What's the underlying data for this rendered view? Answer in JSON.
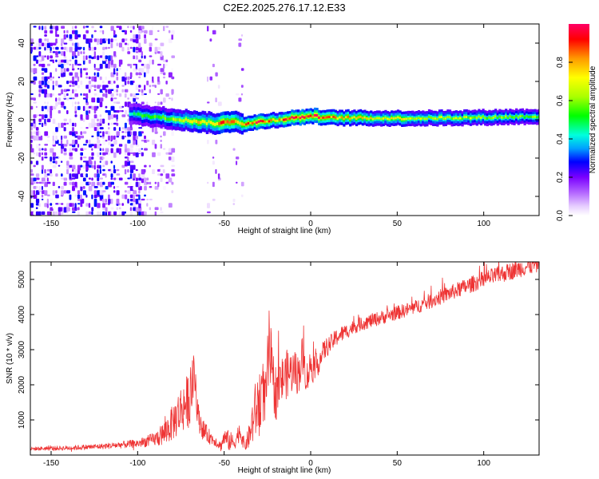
{
  "title": "C2E2.2025.276.17.12.E33",
  "colors": {
    "snr_line": "#ee3333",
    "axis": "#000000",
    "colormap": [
      "#ffffff",
      "#e6ccff",
      "#b366ff",
      "#7a00ff",
      "#0000ff",
      "#00a0ff",
      "#00ffdd",
      "#00ff00",
      "#aaff00",
      "#ffff00",
      "#ff9900",
      "#ff0000",
      "#ff0066"
    ]
  },
  "chart_data": [
    {
      "type": "heatmap",
      "title": "C2E2.2025.276.17.12.E33",
      "xlabel": "Height of straight line (km)",
      "ylabel": "Frequency (Hz)",
      "xlim": [
        -162,
        132
      ],
      "ylim": [
        -50,
        50
      ],
      "xticks": [
        "-150",
        "-100",
        "-50",
        "0",
        "50",
        "100"
      ],
      "yticks": [
        "40",
        "20",
        "0",
        "-20",
        "-40"
      ],
      "colorbar": {
        "label": "Normalized spectral amplitude",
        "range": [
          0,
          1
        ],
        "ticks": [
          "0.0",
          "0.2",
          "0.4",
          "0.6",
          "0.8"
        ]
      },
      "ridge": {
        "x": [
          -105,
          -95,
          -85,
          -75,
          -65,
          -55,
          -50,
          -45,
          -40,
          -35,
          -30,
          -25,
          -20,
          -15,
          -10,
          -5,
          0,
          5,
          10,
          20,
          40,
          60,
          80,
          100,
          120,
          132
        ],
        "center_hz": [
          3,
          2,
          1,
          0,
          -1,
          -2,
          -1.5,
          -0.5,
          -2,
          -2,
          -1,
          -0.5,
          0,
          0.5,
          1,
          1.5,
          2,
          1.5,
          1,
          1,
          0.8,
          0.8,
          1,
          1.2,
          1.6,
          1.8
        ],
        "peak_amplitude": [
          0.45,
          0.55,
          0.6,
          0.7,
          0.75,
          0.8,
          0.9,
          0.85,
          0.8,
          0.9,
          0.95,
          0.85,
          0.75,
          0.9,
          0.95,
          0.95,
          0.95,
          0.92,
          0.85,
          0.8,
          0.72,
          0.68,
          0.66,
          0.62,
          0.6,
          0.58
        ]
      },
      "noise_regions": [
        {
          "x_range": [
            -162,
            -95
          ],
          "density": "high"
        },
        {
          "x_range": [
            -95,
            -80
          ],
          "density": "medium"
        },
        {
          "x_range": [
            -60,
            -53
          ],
          "density": "low"
        },
        {
          "x_range": [
            -45,
            -40
          ],
          "density": "low"
        }
      ]
    },
    {
      "type": "line",
      "xlabel": "Height of straight line (km)",
      "ylabel": "SNR (10 * v/v)",
      "xlim": [
        -162,
        132
      ],
      "ylim": [
        0,
        5500
      ],
      "xticks": [
        "-150",
        "-100",
        "-50",
        "0",
        "50",
        "100"
      ],
      "yticks": [
        "5000",
        "4000",
        "3000",
        "2000",
        "1000"
      ],
      "series": [
        {
          "name": "SNR",
          "x": [
            -162,
            -140,
            -120,
            -100,
            -90,
            -85,
            -80,
            -75,
            -70,
            -67,
            -65,
            -62,
            -58,
            -55,
            -52,
            -50,
            -47,
            -44,
            -41,
            -38,
            -35,
            -33,
            -30,
            -28,
            -26,
            -24,
            -22,
            -20,
            -17,
            -14,
            -10,
            -7,
            -5,
            -2,
            0,
            2,
            5,
            8,
            12,
            16,
            20,
            25,
            30,
            40,
            50,
            60,
            70,
            80,
            90,
            100,
            110,
            120,
            132
          ],
          "values": [
            180,
            200,
            250,
            330,
            450,
            600,
            900,
            1300,
            1600,
            2300,
            1100,
            700,
            500,
            400,
            250,
            500,
            400,
            350,
            700,
            250,
            600,
            1100,
            1500,
            1900,
            1500,
            3100,
            2100,
            1800,
            2100,
            2300,
            2400,
            2300,
            2800,
            2200,
            2600,
            2400,
            2700,
            3000,
            3200,
            3400,
            3500,
            3650,
            3750,
            3900,
            4050,
            4200,
            4400,
            4600,
            4800,
            5000,
            5150,
            5300,
            5450
          ],
          "amplitude": [
            50,
            70,
            80,
            120,
            200,
            350,
            500,
            700,
            800,
            700,
            400,
            300,
            200,
            150,
            150,
            250,
            300,
            200,
            300,
            150,
            400,
            800,
            900,
            900,
            800,
            1200,
            900,
            800,
            700,
            700,
            600,
            600,
            600,
            500,
            450,
            400,
            350,
            300,
            250,
            250,
            220,
            200,
            200,
            200,
            200,
            200,
            220,
            220,
            230,
            240,
            250,
            250,
            250
          ]
        }
      ]
    }
  ]
}
